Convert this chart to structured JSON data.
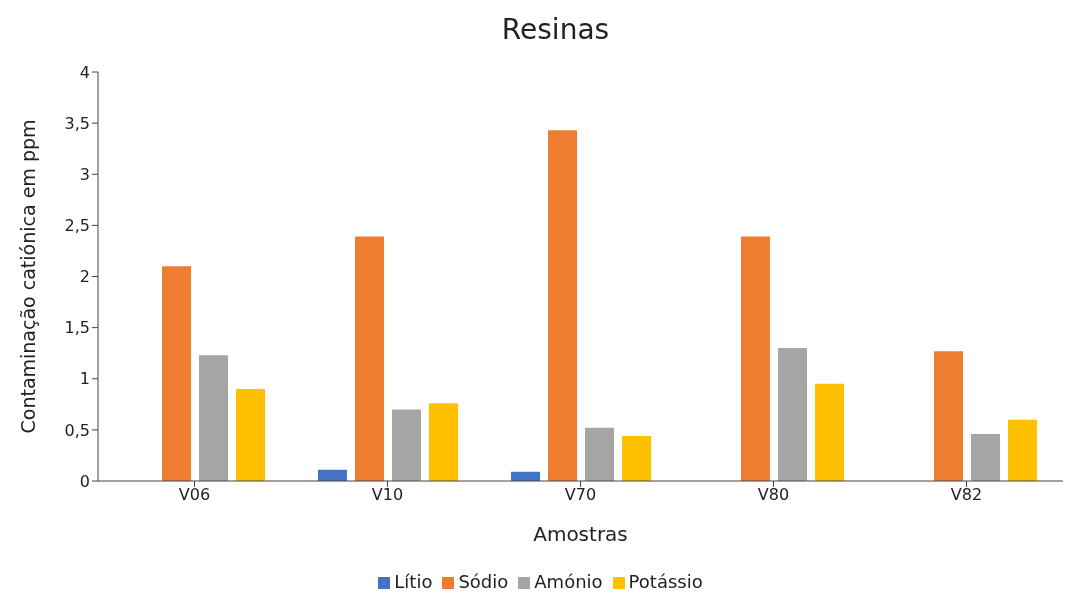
{
  "chart_data": {
    "type": "bar",
    "title": "Resinas",
    "xlabel": "Amostras",
    "ylabel": "Contaminação catiónica em ppm",
    "categories": [
      "V06",
      "V10",
      "V70",
      "V80",
      "V82"
    ],
    "series": [
      {
        "name": "Lítio",
        "color": "#4472c4",
        "values": [
          0,
          0.11,
          0.09,
          0,
          0
        ]
      },
      {
        "name": "Sódio",
        "color": "#ed7d31",
        "values": [
          2.1,
          2.39,
          3.43,
          2.39,
          1.27
        ]
      },
      {
        "name": "Amónio",
        "color": "#a5a5a5",
        "values": [
          1.23,
          0.7,
          0.52,
          1.3,
          0.46
        ]
      },
      {
        "name": "Potássio",
        "color": "#ffc000",
        "values": [
          0.9,
          0.76,
          0.44,
          0.95,
          0.6
        ]
      }
    ],
    "ylim": [
      0,
      4
    ],
    "yticks": [
      0,
      {
        "value": 0.5,
        "label": "0,5"
      },
      1,
      {
        "value": 1.5,
        "label": "1,5"
      },
      2,
      {
        "value": 2.5,
        "label": "2,5"
      },
      3,
      {
        "value": 3.5,
        "label": "3,5"
      },
      4
    ],
    "grid": false,
    "legend": "bottom"
  }
}
